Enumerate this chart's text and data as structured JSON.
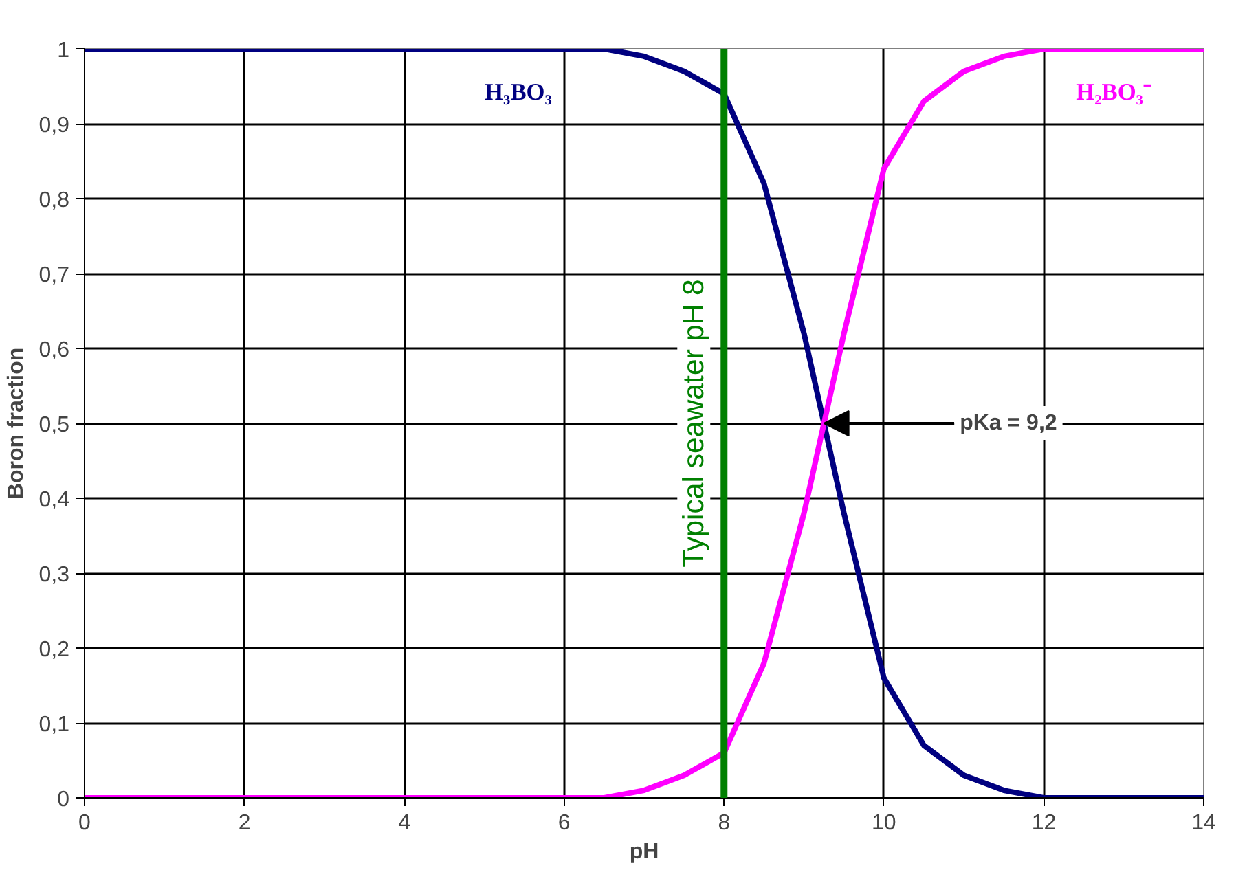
{
  "chart_data": {
    "type": "line",
    "xlabel": "pH",
    "ylabel": "Boron fraction",
    "x": [
      0,
      1,
      2,
      3,
      4,
      5,
      6,
      6.5,
      7,
      7.5,
      8,
      8.5,
      9,
      9.5,
      10,
      10.5,
      11,
      11.5,
      12,
      13,
      14
    ],
    "series": [
      {
        "name": "H₃BO₃",
        "color": "#000080",
        "values": [
          1,
          1,
          1,
          1,
          1,
          1,
          1,
          1,
          0.99,
          0.97,
          0.94,
          0.82,
          0.62,
          0.38,
          0.16,
          0.07,
          0.03,
          0.01,
          0,
          0,
          0
        ]
      },
      {
        "name": "H₂BO₃⁻",
        "color": "#ff00ff",
        "values": [
          0,
          0,
          0,
          0,
          0,
          0,
          0,
          0,
          0.01,
          0.03,
          0.06,
          0.18,
          0.38,
          0.62,
          0.84,
          0.93,
          0.97,
          0.99,
          1,
          1,
          1
        ]
      }
    ],
    "xlim": [
      0,
      14
    ],
    "xticks": [
      0,
      2,
      4,
      6,
      8,
      10,
      12,
      14
    ],
    "ylim": [
      0,
      1
    ],
    "yticks": [
      0,
      {
        "value": 0.1,
        "label": "0,1"
      },
      {
        "value": 0.2,
        "label": "0,2"
      },
      {
        "value": 0.3,
        "label": "0,3"
      },
      {
        "value": 0.4,
        "label": "0,4"
      },
      {
        "value": 0.5,
        "label": "0,5"
      },
      {
        "value": 0.6,
        "label": "0,6"
      },
      {
        "value": 0.7,
        "label": "0,7"
      },
      {
        "value": 0.8,
        "label": "0,8"
      },
      {
        "value": 0.9,
        "label": "0,9"
      },
      1
    ],
    "grid": true,
    "legend": false,
    "marker": "none",
    "line_style": "solid",
    "ref_lines": [
      {
        "axis": "x",
        "value": 8,
        "label": "Typical seawater pH 8",
        "color": "#008000"
      }
    ],
    "annotations": [
      {
        "text": "pKa = 9,2",
        "x": 9.2,
        "y": 0.5
      }
    ]
  }
}
